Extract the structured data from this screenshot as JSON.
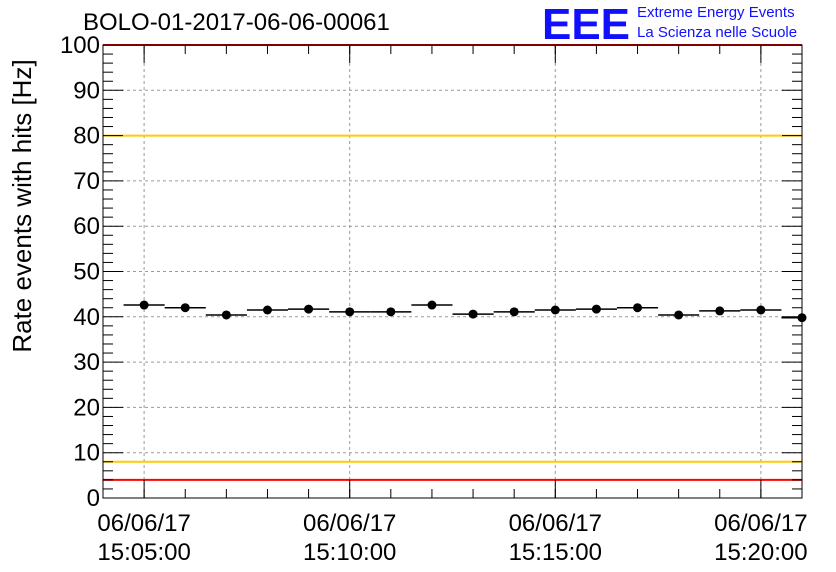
{
  "title": "BOLO-01-2017-06-06-00061",
  "logo": {
    "mark": "EEE",
    "line1": "Extreme Energy Events",
    "line2": "La Scienza nelle Scuole",
    "color": "#1010ff"
  },
  "chart_data": {
    "type": "scatter",
    "title": "BOLO-01-2017-06-06-00061",
    "ylabel": "Rate events with hits [Hz]",
    "xlabel": "",
    "ylim": [
      0,
      100
    ],
    "yticks": [
      0,
      10,
      20,
      30,
      40,
      50,
      60,
      70,
      80,
      90,
      100
    ],
    "xrange": [
      "06/06/17 15:04:00",
      "06/06/17 15:21:00"
    ],
    "xticks": [
      {
        "date": "06/06/17",
        "time": "15:05:00"
      },
      {
        "date": "06/06/17",
        "time": "15:10:00"
      },
      {
        "date": "06/06/17",
        "time": "15:15:00"
      },
      {
        "date": "06/06/17",
        "time": "15:20:00"
      }
    ],
    "grid": true,
    "bin_width_minutes": 1,
    "x": [
      "15:05:00",
      "15:06:00",
      "15:07:00",
      "15:08:00",
      "15:09:00",
      "15:10:00",
      "15:11:00",
      "15:12:00",
      "15:13:00",
      "15:14:00",
      "15:15:00",
      "15:16:00",
      "15:17:00",
      "15:18:00",
      "15:19:00",
      "15:20:00",
      "15:21:00"
    ],
    "values": [
      42.6,
      42.0,
      40.4,
      41.5,
      41.7,
      41.1,
      41.1,
      42.6,
      40.6,
      41.1,
      41.5,
      41.7,
      42.0,
      40.4,
      41.3,
      41.5,
      39.8
    ],
    "reference_lines": [
      {
        "y": 100,
        "color": "#ff0000"
      },
      {
        "y": 80,
        "color": "#ffcc00"
      },
      {
        "y": 8,
        "color": "#ffcc00"
      },
      {
        "y": 4,
        "color": "#ff0000"
      }
    ],
    "marker_color": "#000000"
  }
}
